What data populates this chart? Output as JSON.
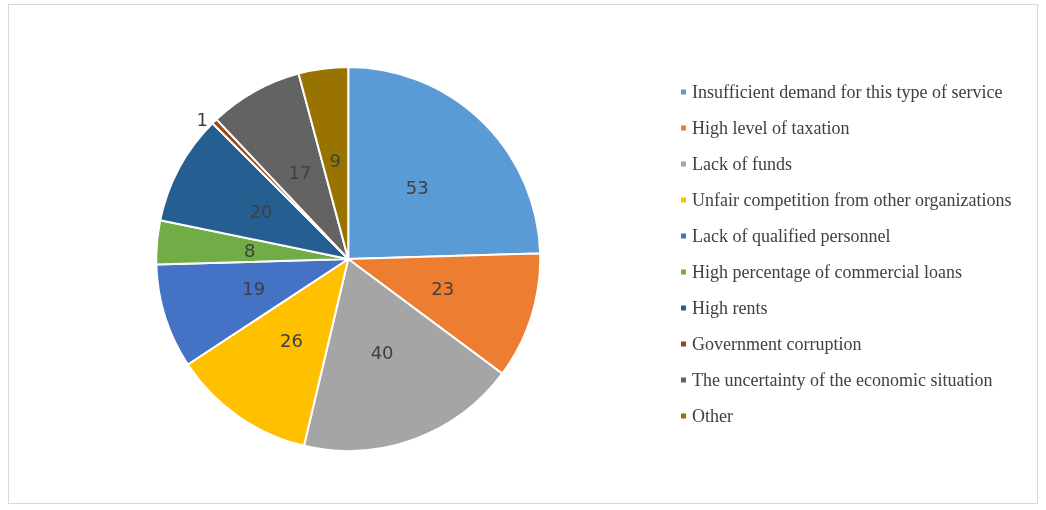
{
  "chart_data": {
    "type": "pie",
    "categories": [
      "Insufficient demand for this type of service",
      "High level of taxation",
      "Lack of funds",
      "Unfair competition from other organizations",
      "Lack of qualified personnel",
      "High percentage of commercial loans",
      "High rents",
      "Government corruption",
      "The uncertainty of the economic situation",
      "Other"
    ],
    "values": [
      53,
      23,
      40,
      26,
      19,
      8,
      20,
      1,
      17,
      9
    ],
    "colors": [
      "#5b9bd5",
      "#ed7d31",
      "#a5a5a5",
      "#ffc000",
      "#4472c4",
      "#70ad47",
      "#255e91",
      "#9e480e",
      "#636363",
      "#997300"
    ],
    "data_labels": true,
    "legend": "right"
  }
}
